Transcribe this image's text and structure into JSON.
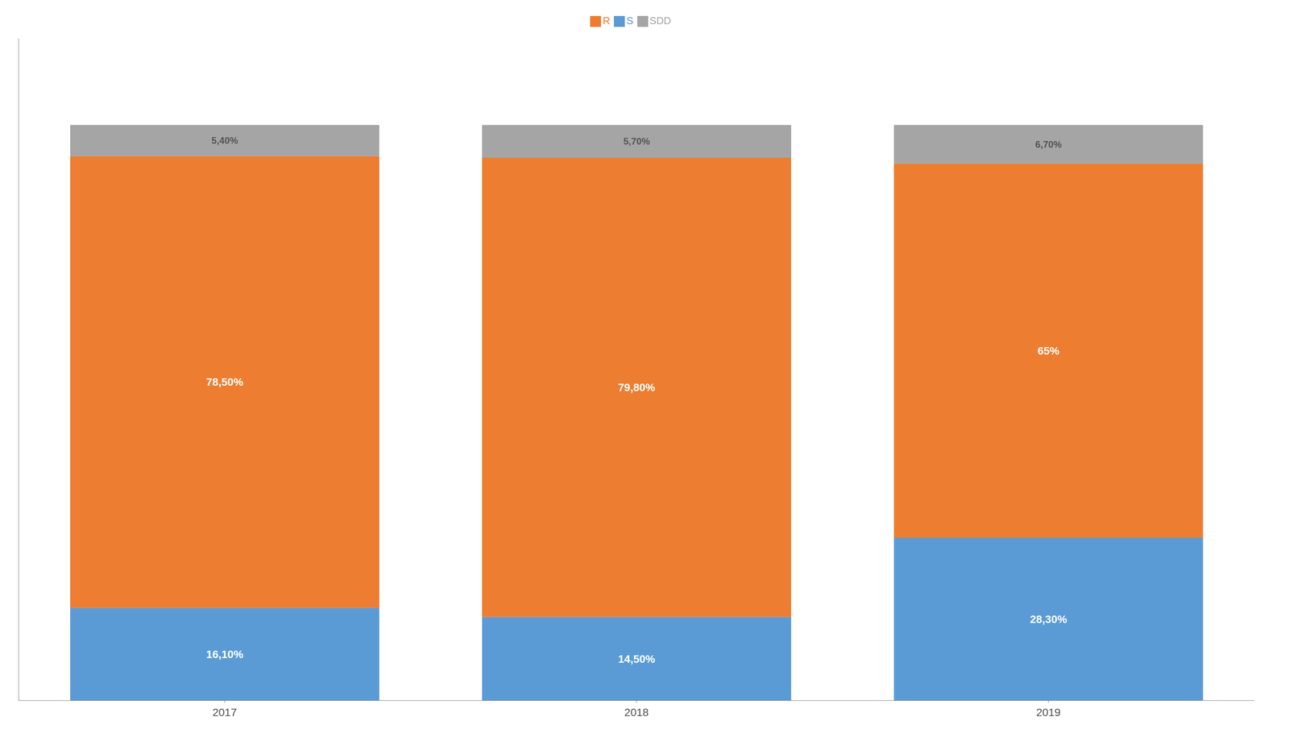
{
  "chart_data": {
    "type": "bar",
    "stacked": true,
    "categories": [
      "2017",
      "2018",
      "2019"
    ],
    "series": [
      {
        "name": "S",
        "color": "#5B9BD5",
        "values": [
          16.1,
          14.5,
          28.3
        ],
        "value_labels": [
          "16,10%",
          "14,50%",
          "28,30%"
        ]
      },
      {
        "name": "R",
        "color": "#ED7D31",
        "values": [
          78.5,
          79.8,
          65.0
        ],
        "value_labels": [
          "78,50%",
          "79,80%",
          "65%"
        ]
      },
      {
        "name": "SDD",
        "color": "#A5A5A5",
        "values": [
          5.4,
          5.7,
          6.7
        ],
        "value_labels": [
          "5,40%",
          "5,70%",
          "6,70%"
        ]
      }
    ],
    "ylim": [
      0,
      115
    ],
    "data_labels": true,
    "tick_labels": "x",
    "legend": "top",
    "grid": false
  }
}
